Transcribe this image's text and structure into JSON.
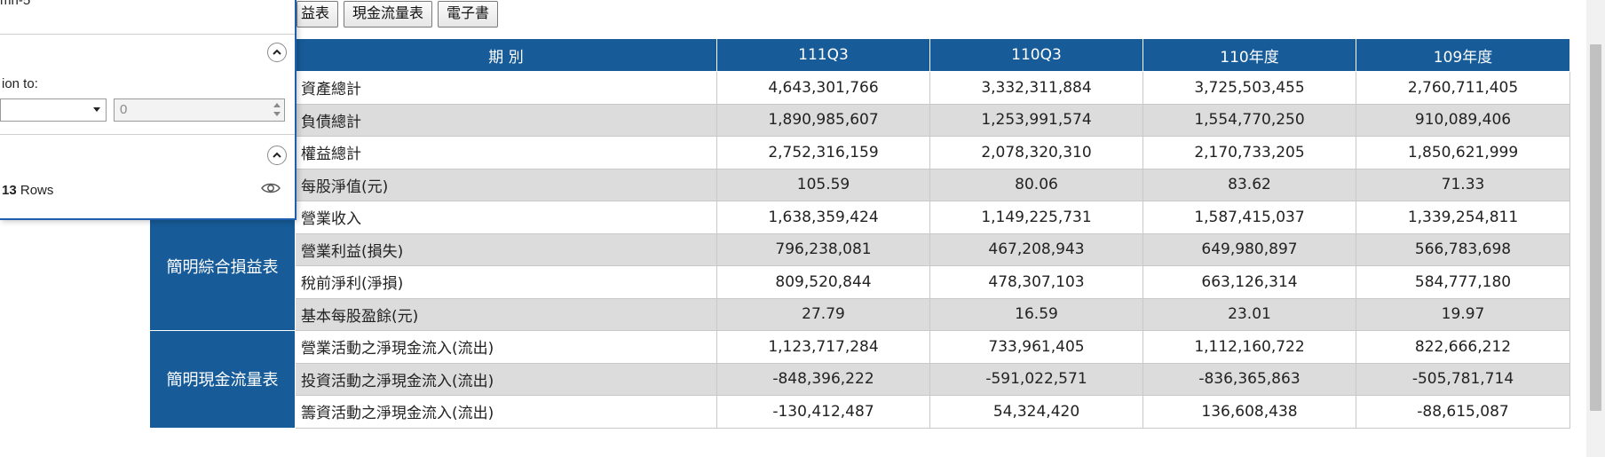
{
  "tabs": [
    "益表",
    "現金流量表",
    "電子書"
  ],
  "table": {
    "header": [
      "期 別",
      "111Q3",
      "110Q3",
      "110年度",
      "109年度"
    ],
    "sections": [
      {
        "category": "",
        "rows": [
          {
            "item": "資產總計",
            "values": [
              "4,643,301,766",
              "3,332,311,884",
              "3,725,503,455",
              "2,760,711,405"
            ]
          },
          {
            "item": "負債總計",
            "values": [
              "1,890,985,607",
              "1,253,991,574",
              "1,554,770,250",
              "910,089,406"
            ]
          },
          {
            "item": "權益總計",
            "values": [
              "2,752,316,159",
              "2,078,320,310",
              "2,170,733,205",
              "1,850,621,999"
            ]
          },
          {
            "item": "每股淨值(元)",
            "values": [
              "105.59",
              "80.06",
              "83.62",
              "71.33"
            ]
          }
        ]
      },
      {
        "category": "簡明綜合損益表",
        "rows": [
          {
            "item": "營業收入",
            "values": [
              "1,638,359,424",
              "1,149,225,731",
              "1,587,415,037",
              "1,339,254,811"
            ]
          },
          {
            "item": "營業利益(損失)",
            "values": [
              "796,238,081",
              "467,208,943",
              "649,980,897",
              "566,783,698"
            ]
          },
          {
            "item": "稅前淨利(淨損)",
            "values": [
              "809,520,844",
              "478,307,103",
              "663,126,314",
              "584,777,180"
            ]
          },
          {
            "item": "基本每股盈餘(元)",
            "values": [
              "27.79",
              "16.59",
              "23.01",
              "19.97"
            ]
          }
        ]
      },
      {
        "category": "簡明現金流量表",
        "rows": [
          {
            "item": "營業活動之淨現金流入(流出)",
            "values": [
              "1,123,717,284",
              "733,961,405",
              "1,112,160,722",
              "822,666,212"
            ]
          },
          {
            "item": "投資活動之淨現金流入(流出)",
            "values": [
              "-848,396,222",
              "-591,022,571",
              "-836,365,863",
              "-505,781,714"
            ]
          },
          {
            "item": "籌資活動之淨現金流入(流出)",
            "values": [
              "-130,412,487",
              "54,324,420",
              "136,608,438",
              "-88,615,087"
            ]
          }
        ]
      }
    ]
  },
  "panel": {
    "top_cut_text": "mn-5",
    "section_label": "ion to:",
    "select_value": "",
    "number_value": "0",
    "rows_count": "13",
    "rows_suffix": " Rows"
  },
  "colors": {
    "header_bg": "#175b98",
    "alt_row_bg": "#dcdcdc",
    "panel_border": "#1f5fae"
  }
}
